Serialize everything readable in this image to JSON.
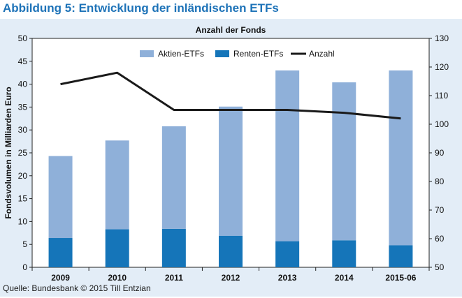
{
  "figure_title": "Abbildung 5: Entwicklung der inländischen ETFs",
  "source": "Quelle: Bundesbank © 2015 Till Entzian",
  "colors": {
    "title": "#1e73b8",
    "panel_background": "#e3edf7",
    "aktien": "#8fb0d9",
    "renten": "#1575b9",
    "anzahl": "#1a1a1a"
  },
  "chart_data": {
    "type": "bar",
    "stacked": true,
    "title": "Anzahl der Fonds",
    "xlabel": "",
    "ylabel": "Fondsvolumen in Milliarden Euro",
    "categories": [
      "2009",
      "2010",
      "2011",
      "2012",
      "2013",
      "2014",
      "2015-06"
    ],
    "ylim": [
      0,
      50
    ],
    "yticks": [
      0,
      5,
      10,
      15,
      20,
      25,
      30,
      35,
      40,
      45,
      50
    ],
    "y2lim": [
      50,
      130
    ],
    "y2ticks": [
      50,
      60,
      70,
      80,
      90,
      100,
      110,
      120,
      130
    ],
    "grid": false,
    "legend_position": "top-center",
    "series": [
      {
        "name": "Aktien-ETFs",
        "type": "bar",
        "axis": "left",
        "values": [
          17.9,
          19.4,
          22.4,
          28.2,
          37.3,
          34.5,
          38.2
        ]
      },
      {
        "name": "Renten-ETFs",
        "type": "bar",
        "axis": "left",
        "values": [
          6.4,
          8.3,
          8.4,
          6.9,
          5.7,
          5.9,
          4.8
        ]
      },
      {
        "name": "Anzahl",
        "type": "line",
        "axis": "right",
        "values": [
          114,
          118,
          105,
          105,
          105,
          104,
          102
        ]
      }
    ]
  }
}
